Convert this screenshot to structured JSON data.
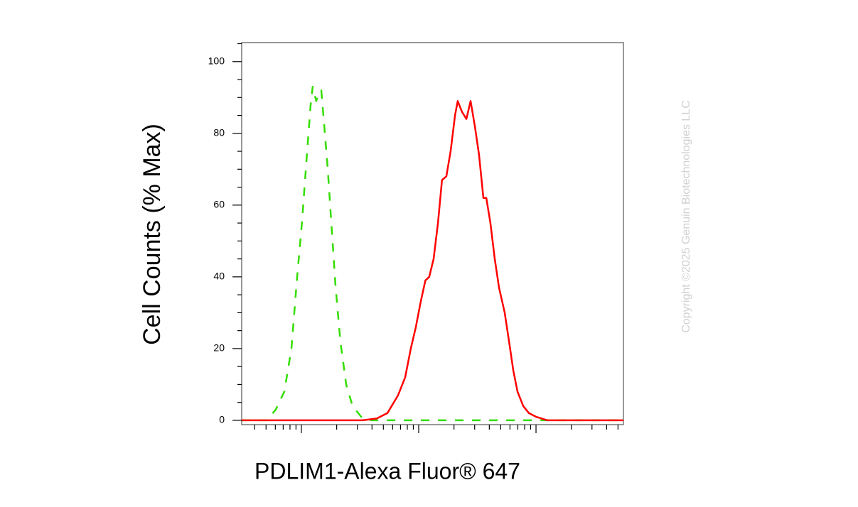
{
  "chart_data": {
    "type": "line",
    "xlabel": "PDLIM1-Alexa Fluor® 647",
    "ylabel": "Cell Counts (% Max)",
    "watermark": "Copyright ©2025 Genuin Biotechnologies LLC",
    "xscale": "log",
    "xlim": [
      3.1,
      5560
    ],
    "xticks": [
      10,
      100,
      1000
    ],
    "x_tick_labels": false,
    "x_minor_ticks": [
      4,
      5,
      6,
      7,
      8,
      9,
      20,
      30,
      40,
      50,
      60,
      70,
      80,
      90,
      200,
      300,
      400,
      500,
      600,
      700,
      800,
      900,
      2000,
      3000,
      4000,
      5000
    ],
    "ylim": [
      -1.2,
      105.3
    ],
    "yticks": [
      0,
      20,
      40,
      60,
      80,
      100
    ],
    "y_minor_ticks": [
      5,
      10,
      15,
      25,
      30,
      35,
      45,
      50,
      55,
      65,
      70,
      75,
      85,
      90,
      95,
      105
    ],
    "series": [
      {
        "color": "#33dd00",
        "dash": true,
        "x": [
          3.1,
          5.05,
          6.05,
          7.16,
          8.23,
          9.2,
          10.1,
          11.2,
          12.0,
          12.5,
          13.4,
          14.0,
          14.8,
          15.6,
          16.8,
          18.0,
          19.5,
          21.5,
          24.1,
          27.3,
          32.3,
          38.2,
          5560
        ],
        "values": [
          0,
          0,
          3,
          8,
          20,
          40,
          55,
          75,
          88,
          93,
          89,
          91,
          92,
          83,
          70,
          55,
          38,
          22,
          10,
          4,
          1,
          0,
          0
        ]
      },
      {
        "color": "#ff0000",
        "dash": false,
        "x": [
          3.1,
          33.2,
          43.9,
          54.1,
          66.7,
          76.7,
          85.7,
          94.6,
          104,
          114,
          123,
          134,
          146,
          158,
          172,
          187,
          204,
          215,
          234,
          255,
          277,
          301,
          327,
          356,
          377,
          409,
          445,
          484,
          541,
          589,
          640,
          695,
          778,
          869,
          1000,
          1250,
          5560
        ],
        "values": [
          0,
          0,
          0.5,
          2,
          7,
          12,
          20,
          26,
          33,
          39,
          40,
          45,
          55,
          67,
          68,
          75,
          85,
          89,
          86,
          84,
          89,
          82,
          74,
          62,
          62,
          55,
          45,
          37,
          30,
          22,
          14,
          8,
          4,
          2,
          1,
          0,
          0
        ]
      }
    ]
  }
}
